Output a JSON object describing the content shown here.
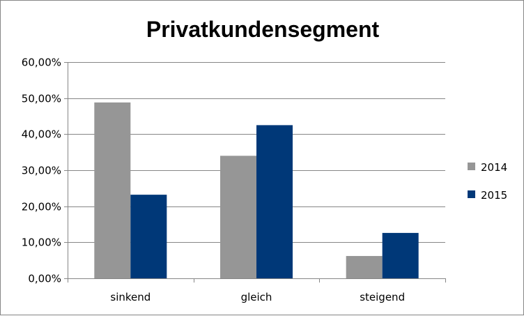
{
  "chart_data": {
    "type": "bar",
    "title": "Privatkundensegment",
    "categories": [
      "sinkend",
      "gleich",
      "steigend"
    ],
    "series": [
      {
        "name": "2014",
        "values": [
          0.488,
          0.34,
          0.062
        ],
        "color": "#969696"
      },
      {
        "name": "2015",
        "values": [
          0.232,
          0.425,
          0.126
        ],
        "color": "#003878"
      }
    ],
    "ylim": [
      0,
      0.6
    ],
    "yticks": [
      0,
      0.1,
      0.2,
      0.3,
      0.4,
      0.5,
      0.6
    ],
    "ytick_labels": [
      "0,00%",
      "10,00%",
      "20,00%",
      "30,00%",
      "40,00%",
      "50,00%",
      "60,00%"
    ],
    "grid": true,
    "legend_position": "right"
  }
}
